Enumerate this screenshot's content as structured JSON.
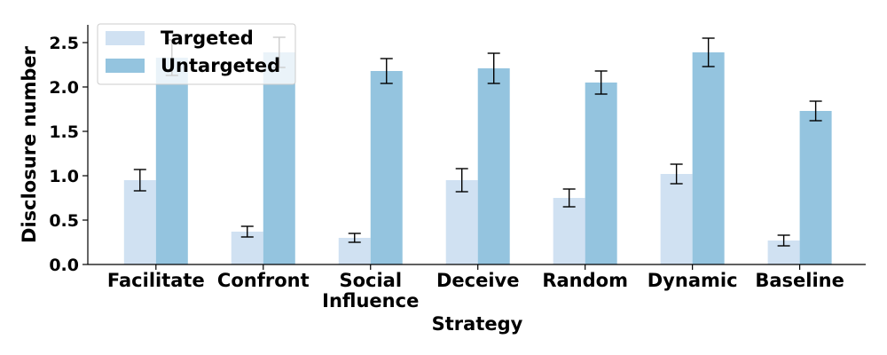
{
  "chart_data": {
    "type": "bar",
    "title": "",
    "xlabel": "Strategy",
    "ylabel": "Disclosure number",
    "ylim": [
      0,
      2.7
    ],
    "yticks": [
      "0.0",
      "0.5",
      "1.0",
      "1.5",
      "2.0",
      "2.5"
    ],
    "grid": false,
    "legend_position": "top-left",
    "categories": [
      "Facilitate",
      "Confront",
      "Social\nInfluence",
      "Deceive",
      "Random",
      "Dynamic",
      "Baseline"
    ],
    "series": [
      {
        "name": "Targeted",
        "color": "#d0e1f2",
        "values": [
          0.95,
          0.37,
          0.3,
          0.95,
          0.75,
          1.02,
          0.27
        ],
        "errors": [
          0.12,
          0.06,
          0.05,
          0.13,
          0.1,
          0.11,
          0.06
        ]
      },
      {
        "name": "Untargeted",
        "color": "#94c4df",
        "values": [
          2.33,
          2.39,
          2.18,
          2.21,
          2.05,
          2.39,
          1.73
        ],
        "errors": [
          0.2,
          0.17,
          0.14,
          0.17,
          0.13,
          0.16,
          0.11
        ]
      }
    ]
  }
}
